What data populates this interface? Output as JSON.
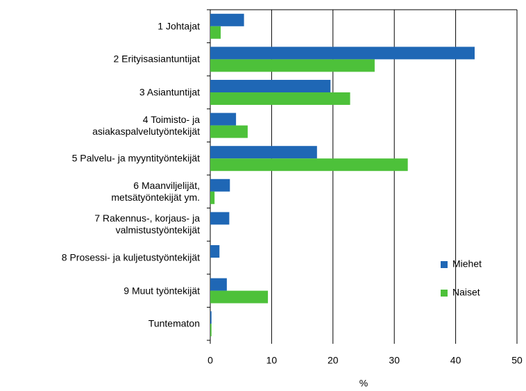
{
  "chart_data": {
    "type": "hbar",
    "xlabel": "%",
    "categories": [
      "1 Johtajat",
      "2 Erityisasiantuntijat",
      "3 Asiantuntijat",
      "4 Toimisto- ja\nasiakaspalvelutyöntekijät",
      "5 Palvelu- ja myyntityöntekijät",
      "6 Maanviljelijät,\nmetsätyöntekijät ym.",
      "7 Rakennus-, korjaus- ja\nvalmistustyöntekijät",
      "8 Prosessi- ja kuljetustyöntekijät",
      "9 Muut työntekijät",
      "Tuntematon"
    ],
    "series": [
      {
        "name": "Miehet",
        "color": "#1f67b5",
        "values": [
          5.5,
          43.1,
          19.6,
          4.2,
          17.4,
          3.2,
          3.1,
          1.5,
          2.7,
          0.2
        ]
      },
      {
        "name": "Naiset",
        "color": "#4dc13a",
        "values": [
          1.7,
          26.8,
          22.8,
          6.1,
          32.2,
          0.7,
          0,
          0,
          9.4,
          0.2
        ]
      }
    ],
    "xlim": [
      0,
      50
    ],
    "xticks": [
      0,
      10,
      20,
      30,
      40,
      50
    ],
    "grid": true
  }
}
